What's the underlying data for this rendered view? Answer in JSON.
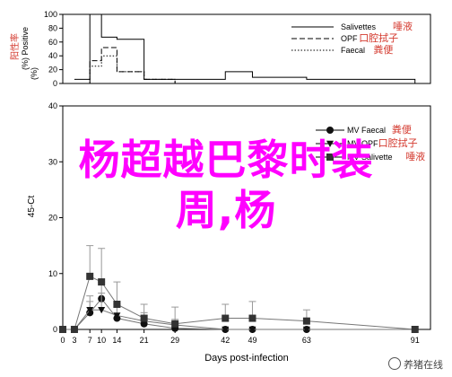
{
  "overlay_title": {
    "line1": "杨超越巴黎时装",
    "line2": "周,杨"
  },
  "watermark": "养猪在线",
  "chart_data": [
    {
      "type": "line",
      "step": true,
      "ylabel": "阳性率",
      "ylabel_unit_a": "(%) Positive",
      "ylabel_unit_b": "(%)",
      "ylim": [
        0,
        100
      ],
      "yticks": [
        0,
        20,
        40,
        60,
        80,
        100
      ],
      "xlim": [
        0,
        95
      ],
      "legend_position": "top-right",
      "series": [
        {
          "name": "Salivettes",
          "name_cn": "唾液",
          "style": "solid",
          "x": [
            3,
            7,
            10,
            14,
            21,
            29,
            42,
            49,
            63,
            91
          ],
          "y": [
            6,
            100,
            67,
            64,
            6,
            6,
            17,
            9,
            6,
            0
          ]
        },
        {
          "name": "OPF",
          "name_cn": "口腔拭子",
          "style": "dashed",
          "x": [
            3,
            7,
            10,
            14,
            21,
            29,
            42,
            49,
            63,
            91
          ],
          "y": [
            0,
            33,
            52,
            17,
            6,
            0,
            0,
            0,
            0,
            0
          ]
        },
        {
          "name": "Faecal",
          "name_cn": "粪便",
          "style": "dotted",
          "x": [
            3,
            7,
            10,
            14,
            21,
            29,
            42,
            49,
            63,
            91
          ],
          "y": [
            0,
            25,
            40,
            17,
            6,
            0,
            0,
            0,
            0,
            0
          ]
        }
      ]
    },
    {
      "type": "line",
      "xlabel": "Days post-infection",
      "ylabel": "45-Ct",
      "ylim": [
        0,
        40
      ],
      "yticks": [
        0,
        10,
        20,
        30,
        40
      ],
      "xticks": [
        0,
        3,
        7,
        10,
        14,
        21,
        29,
        42,
        49,
        63,
        91
      ],
      "xlim": [
        0,
        95
      ],
      "legend_position": "top-right",
      "series": [
        {
          "name": "MV Faecal",
          "name_cn": "粪便",
          "marker": "circle",
          "x": [
            0,
            3,
            7,
            10,
            14,
            21,
            29,
            42,
            49,
            63,
            91
          ],
          "y": [
            0,
            0,
            3,
            5.5,
            2,
            1,
            0.2,
            0,
            0,
            0,
            0
          ],
          "err": [
            0,
            0,
            2,
            3,
            2,
            1.5,
            1,
            0,
            0,
            0,
            0
          ]
        },
        {
          "name": "MV OPF",
          "name_cn": "口腔拭子",
          "marker": "triangle-down",
          "x": [
            0,
            3,
            7,
            10,
            14,
            21,
            29,
            42,
            49,
            63,
            91
          ],
          "y": [
            0,
            0,
            3.5,
            3.5,
            2.5,
            1.5,
            0.8,
            0,
            0,
            0,
            0
          ],
          "err": [
            0,
            0,
            2.5,
            3,
            2,
            1.5,
            1,
            0,
            0,
            0,
            0
          ]
        },
        {
          "name": "MV Salivette",
          "name_cn": "唾液",
          "marker": "square",
          "x": [
            0,
            3,
            7,
            10,
            14,
            21,
            29,
            42,
            49,
            63,
            91
          ],
          "y": [
            0,
            0,
            9.5,
            8.5,
            4.5,
            2,
            1,
            2,
            2,
            1.5,
            0
          ],
          "err": [
            0,
            0,
            5.5,
            6,
            4,
            2.5,
            3,
            2.5,
            3,
            2,
            0
          ]
        }
      ]
    }
  ]
}
